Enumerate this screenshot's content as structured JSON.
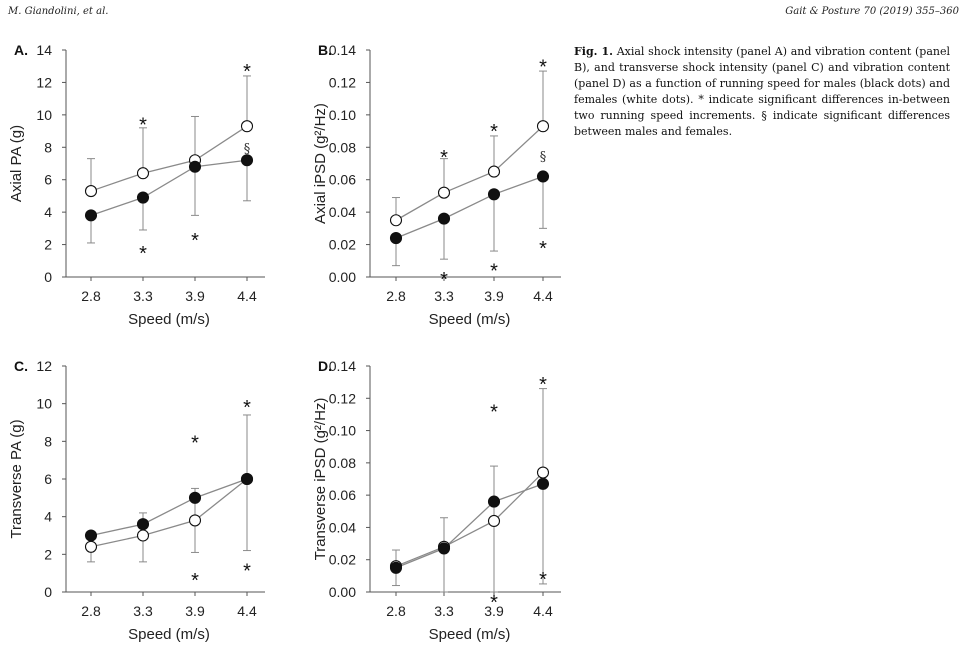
{
  "header": {
    "left": "M. Giandolini, et al.",
    "right": "Gait & Posture 70 (2019) 355–360"
  },
  "caption": {
    "lead": "Fig. 1.",
    "text": "Axial shock intensity (panel A) and vibration content (panel B), and transverse shock intensity (panel C) and vibration content (panel D) as a function of running speed for males (black dots) and females (white dots). * indicate significant differences in-between two running speed increments. § indicate significant differences between males and females."
  },
  "colors": {
    "male": "#111111",
    "female": "#ffffff",
    "line": "#8a8a8a",
    "axis": "#555555"
  },
  "chart_data": [
    {
      "type": "line",
      "panel": "A.",
      "xlabel": "Speed (m/s)",
      "ylabel": "Axial PA (g)",
      "categories": [
        "2.8",
        "3.3",
        "3.9",
        "4.4"
      ],
      "ylim": [
        0,
        14
      ],
      "yticks": [
        "0",
        "2",
        "4",
        "6",
        "8",
        "10",
        "12",
        "14"
      ],
      "series": [
        {
          "name": "males",
          "values": [
            3.8,
            4.9,
            6.8,
            7.2
          ],
          "err": [
            1.7,
            2.0,
            3.0,
            2.5
          ]
        },
        {
          "name": "females",
          "values": [
            5.3,
            6.4,
            7.2,
            9.3
          ],
          "err": [
            2.0,
            2.8,
            2.7,
            3.1
          ]
        }
      ],
      "annotations": [
        {
          "text": "*",
          "x": "3.3",
          "y": 9.7
        },
        {
          "text": "*",
          "x": "4.4",
          "y": 13.0
        },
        {
          "text": "§",
          "x": "4.4",
          "y": 8.0
        },
        {
          "text": "*",
          "x": "3.3",
          "y": 1.8
        },
        {
          "text": "*",
          "x": "3.9",
          "y": 2.6
        }
      ]
    },
    {
      "type": "line",
      "panel": "B.",
      "xlabel": "Speed (m/s)",
      "ylabel": "Axial iPSD (g²/Hz)",
      "categories": [
        "2.8",
        "3.3",
        "3.9",
        "4.4"
      ],
      "ylim": [
        0,
        0.14
      ],
      "yticks": [
        "0.00",
        "0.02",
        "0.04",
        "0.06",
        "0.08",
        "0.10",
        "0.12",
        "0.14"
      ],
      "series": [
        {
          "name": "males",
          "values": [
            0.024,
            0.036,
            0.051,
            0.062
          ],
          "err": [
            0.017,
            0.025,
            0.035,
            0.032
          ]
        },
        {
          "name": "females",
          "values": [
            0.035,
            0.052,
            0.065,
            0.093
          ],
          "err": [
            0.014,
            0.021,
            0.022,
            0.034
          ]
        }
      ],
      "annotations": [
        {
          "text": "*",
          "x": "3.3",
          "y": 0.077
        },
        {
          "text": "*",
          "x": "3.9",
          "y": 0.093
        },
        {
          "text": "*",
          "x": "4.4",
          "y": 0.133
        },
        {
          "text": "§",
          "x": "4.4",
          "y": 0.075
        },
        {
          "text": "*",
          "x": "3.3",
          "y": 0.002
        },
        {
          "text": "*",
          "x": "3.9",
          "y": 0.007
        },
        {
          "text": "*",
          "x": "4.4",
          "y": 0.021
        }
      ]
    },
    {
      "type": "line",
      "panel": "C.",
      "xlabel": "Speed (m/s)",
      "ylabel": "Transverse PA (g)",
      "categories": [
        "2.8",
        "3.3",
        "3.9",
        "4.4"
      ],
      "ylim": [
        0,
        12
      ],
      "yticks": [
        "0",
        "2",
        "4",
        "6",
        "8",
        "10",
        "12"
      ],
      "series": [
        {
          "name": "males",
          "values": [
            3.0,
            3.6,
            5.0,
            6.0
          ],
          "err": [
            1.4,
            2.0,
            2.9,
            3.8
          ]
        },
        {
          "name": "females",
          "values": [
            2.4,
            3.0,
            3.8,
            6.0
          ],
          "err": [
            0.8,
            1.2,
            1.7,
            3.4
          ]
        }
      ],
      "annotations": [
        {
          "text": "*",
          "x": "3.9",
          "y": 8.2
        },
        {
          "text": "*",
          "x": "4.4",
          "y": 10.1
        },
        {
          "text": "*",
          "x": "3.9",
          "y": 0.9
        },
        {
          "text": "*",
          "x": "4.4",
          "y": 1.4
        }
      ]
    },
    {
      "type": "line",
      "panel": "D.",
      "xlabel": "Speed (m/s)",
      "ylabel": "Transverse iPSD (g²/Hz)",
      "categories": [
        "2.8",
        "3.3",
        "3.9",
        "4.4"
      ],
      "ylim": [
        0,
        0.14
      ],
      "yticks": [
        "0.00",
        "0.02",
        "0.04",
        "0.06",
        "0.08",
        "0.10",
        "0.12",
        "0.14"
      ],
      "series": [
        {
          "name": "males",
          "values": [
            0.015,
            0.027,
            0.056,
            0.067
          ],
          "err": [
            0.011,
            0.027,
            0.056,
            0.062
          ]
        },
        {
          "name": "females",
          "values": [
            0.016,
            0.028,
            0.044,
            0.074
          ],
          "err": [
            0.01,
            0.018,
            0.034,
            0.052
          ]
        }
      ],
      "annotations": [
        {
          "text": "*",
          "x": "3.9",
          "y": 0.115
        },
        {
          "text": "*",
          "x": "4.4",
          "y": 0.132
        },
        {
          "text": "*",
          "x": "3.9",
          "y": -0.003
        },
        {
          "text": "*",
          "x": "4.4",
          "y": 0.011
        }
      ]
    }
  ]
}
